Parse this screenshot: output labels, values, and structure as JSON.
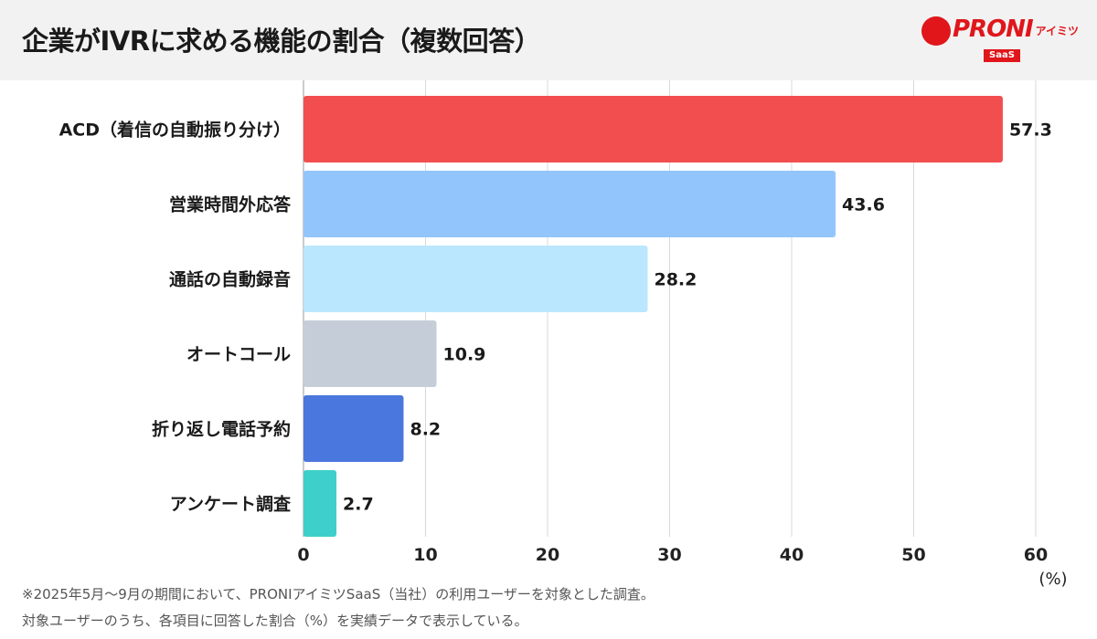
{
  "title": "企業がIVRに求める機能の割合（複数回答）",
  "logo": {
    "text": "PRONI",
    "sub": "アイミツ",
    "badge": "SaaS"
  },
  "chart_data": {
    "type": "bar",
    "orientation": "horizontal",
    "categories": [
      "ACD（着信の自動振り分け）",
      "営業時間外応答",
      "通話の自動録音",
      "オートコール",
      "折り返し電話予約",
      "アンケート調査"
    ],
    "values": [
      57.3,
      43.6,
      28.2,
      10.9,
      8.2,
      2.7
    ],
    "colors": [
      "#f24e4f",
      "#93c5fd",
      "#bae7fd",
      "#c5ced8",
      "#4a77dd",
      "#3ecfca"
    ],
    "xlim": [
      0,
      60
    ],
    "xticks": [
      0,
      10,
      20,
      30,
      40,
      50,
      60
    ],
    "xunit": "(%)",
    "grid": true
  },
  "notes": [
    "※2025年5月〜9月の期間において、PRONIアイミツSaaS（当社）の利用ユーザーを対象とした調査。",
    "対象ユーザーのうち、各項目に回答した割合（%）を実績データで表示している。"
  ]
}
